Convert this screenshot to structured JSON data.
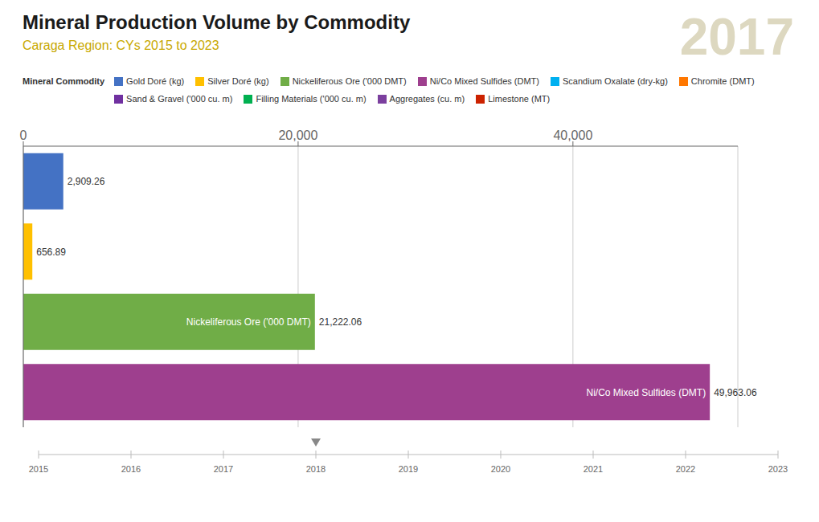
{
  "chart_data": {
    "type": "bar",
    "orientation": "horizontal",
    "title": "Mineral Production Volume by Commodity",
    "subtitle": "Caraga Region: CYs 2015 to 2023",
    "categories": [
      "Gold Doré (kg)",
      "Silver Doré (kg)",
      "Nickeliferous Ore ('000 DMT)",
      "Ni/Co Mixed Sulfides (DMT)"
    ],
    "values": [
      2909.26,
      656.89,
      21222.06,
      49963.06
    ],
    "colors": [
      "#4472C4",
      "#FFC000",
      "#70AD47",
      "#9E3F8E"
    ],
    "data_labels": true,
    "value_labels": [
      "2,909.26",
      "656.89",
      "21,222.06",
      "49,963.06"
    ],
    "bar_labels": [
      null,
      null,
      "Nickeliferous Ore ('000 DMT)",
      "Ni/Co Mixed Sulfides (DMT)"
    ],
    "xlim": [
      0,
      52000
    ],
    "xticks": [
      0,
      {
        "value": 20000,
        "label": "20,000"
      },
      {
        "value": 40000,
        "label": "40,000"
      }
    ],
    "grid": true,
    "tick_labels": "x",
    "legend_title": "Mineral Commodity",
    "legend_entries": [
      {
        "name": "Gold Doré (kg)",
        "color": "#4472C4"
      },
      {
        "name": "Silver Doré (kg)",
        "color": "#FFC000"
      },
      {
        "name": "Nickeliferous Ore ('000 DMT)",
        "color": "#70AD47"
      },
      {
        "name": "Ni/Co Mixed Sulfides (DMT)",
        "color": "#9E3F8E"
      },
      {
        "name": "Scandium Oxalate (dry-kg)",
        "color": "#00B0F0"
      },
      {
        "name": "Chromite (DMT)",
        "color": "#FF7700"
      },
      {
        "name": "Sand & Gravel ('000 cu. m)",
        "color": "#7030A0"
      },
      {
        "name": "Filling Materials ('000 cu. m)",
        "color": "#00B050"
      },
      {
        "name": "Aggregates (cu. m)",
        "color": "#7B3F9E"
      },
      {
        "name": "Limestone (MT)",
        "color": "#CC2200"
      }
    ],
    "annotations": [
      "2017"
    ],
    "timeline": [
      2015,
      2016,
      2017,
      2018,
      2019,
      2020,
      2021,
      2022,
      2023
    ],
    "timeline_marker": 2018
  }
}
